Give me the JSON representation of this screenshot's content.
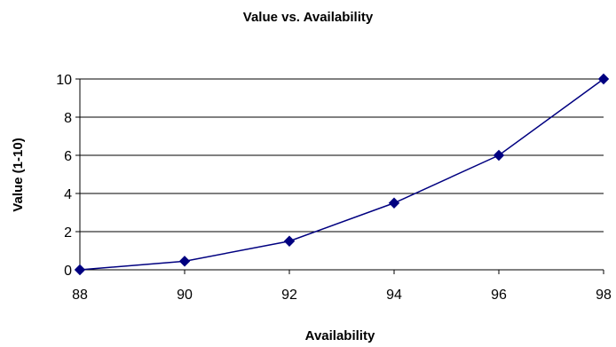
{
  "chart_data": {
    "type": "line",
    "title": "Value vs. Availability",
    "xlabel": "Availability",
    "ylabel": "Value (1-10)",
    "x": [
      88,
      90,
      92,
      94,
      96,
      98
    ],
    "series": [
      {
        "values": [
          0,
          0.45,
          1.5,
          3.5,
          6,
          10
        ],
        "color": "#000080",
        "marker": "diamond"
      }
    ],
    "xlim": [
      88,
      98
    ],
    "ylim": [
      0,
      10
    ],
    "xticks": [
      "88",
      "90",
      "92",
      "94",
      "96",
      "98"
    ],
    "yticks": [
      "0",
      "2",
      "4",
      "6",
      "8",
      "10"
    ],
    "grid": "horizontal",
    "legend": "none"
  }
}
